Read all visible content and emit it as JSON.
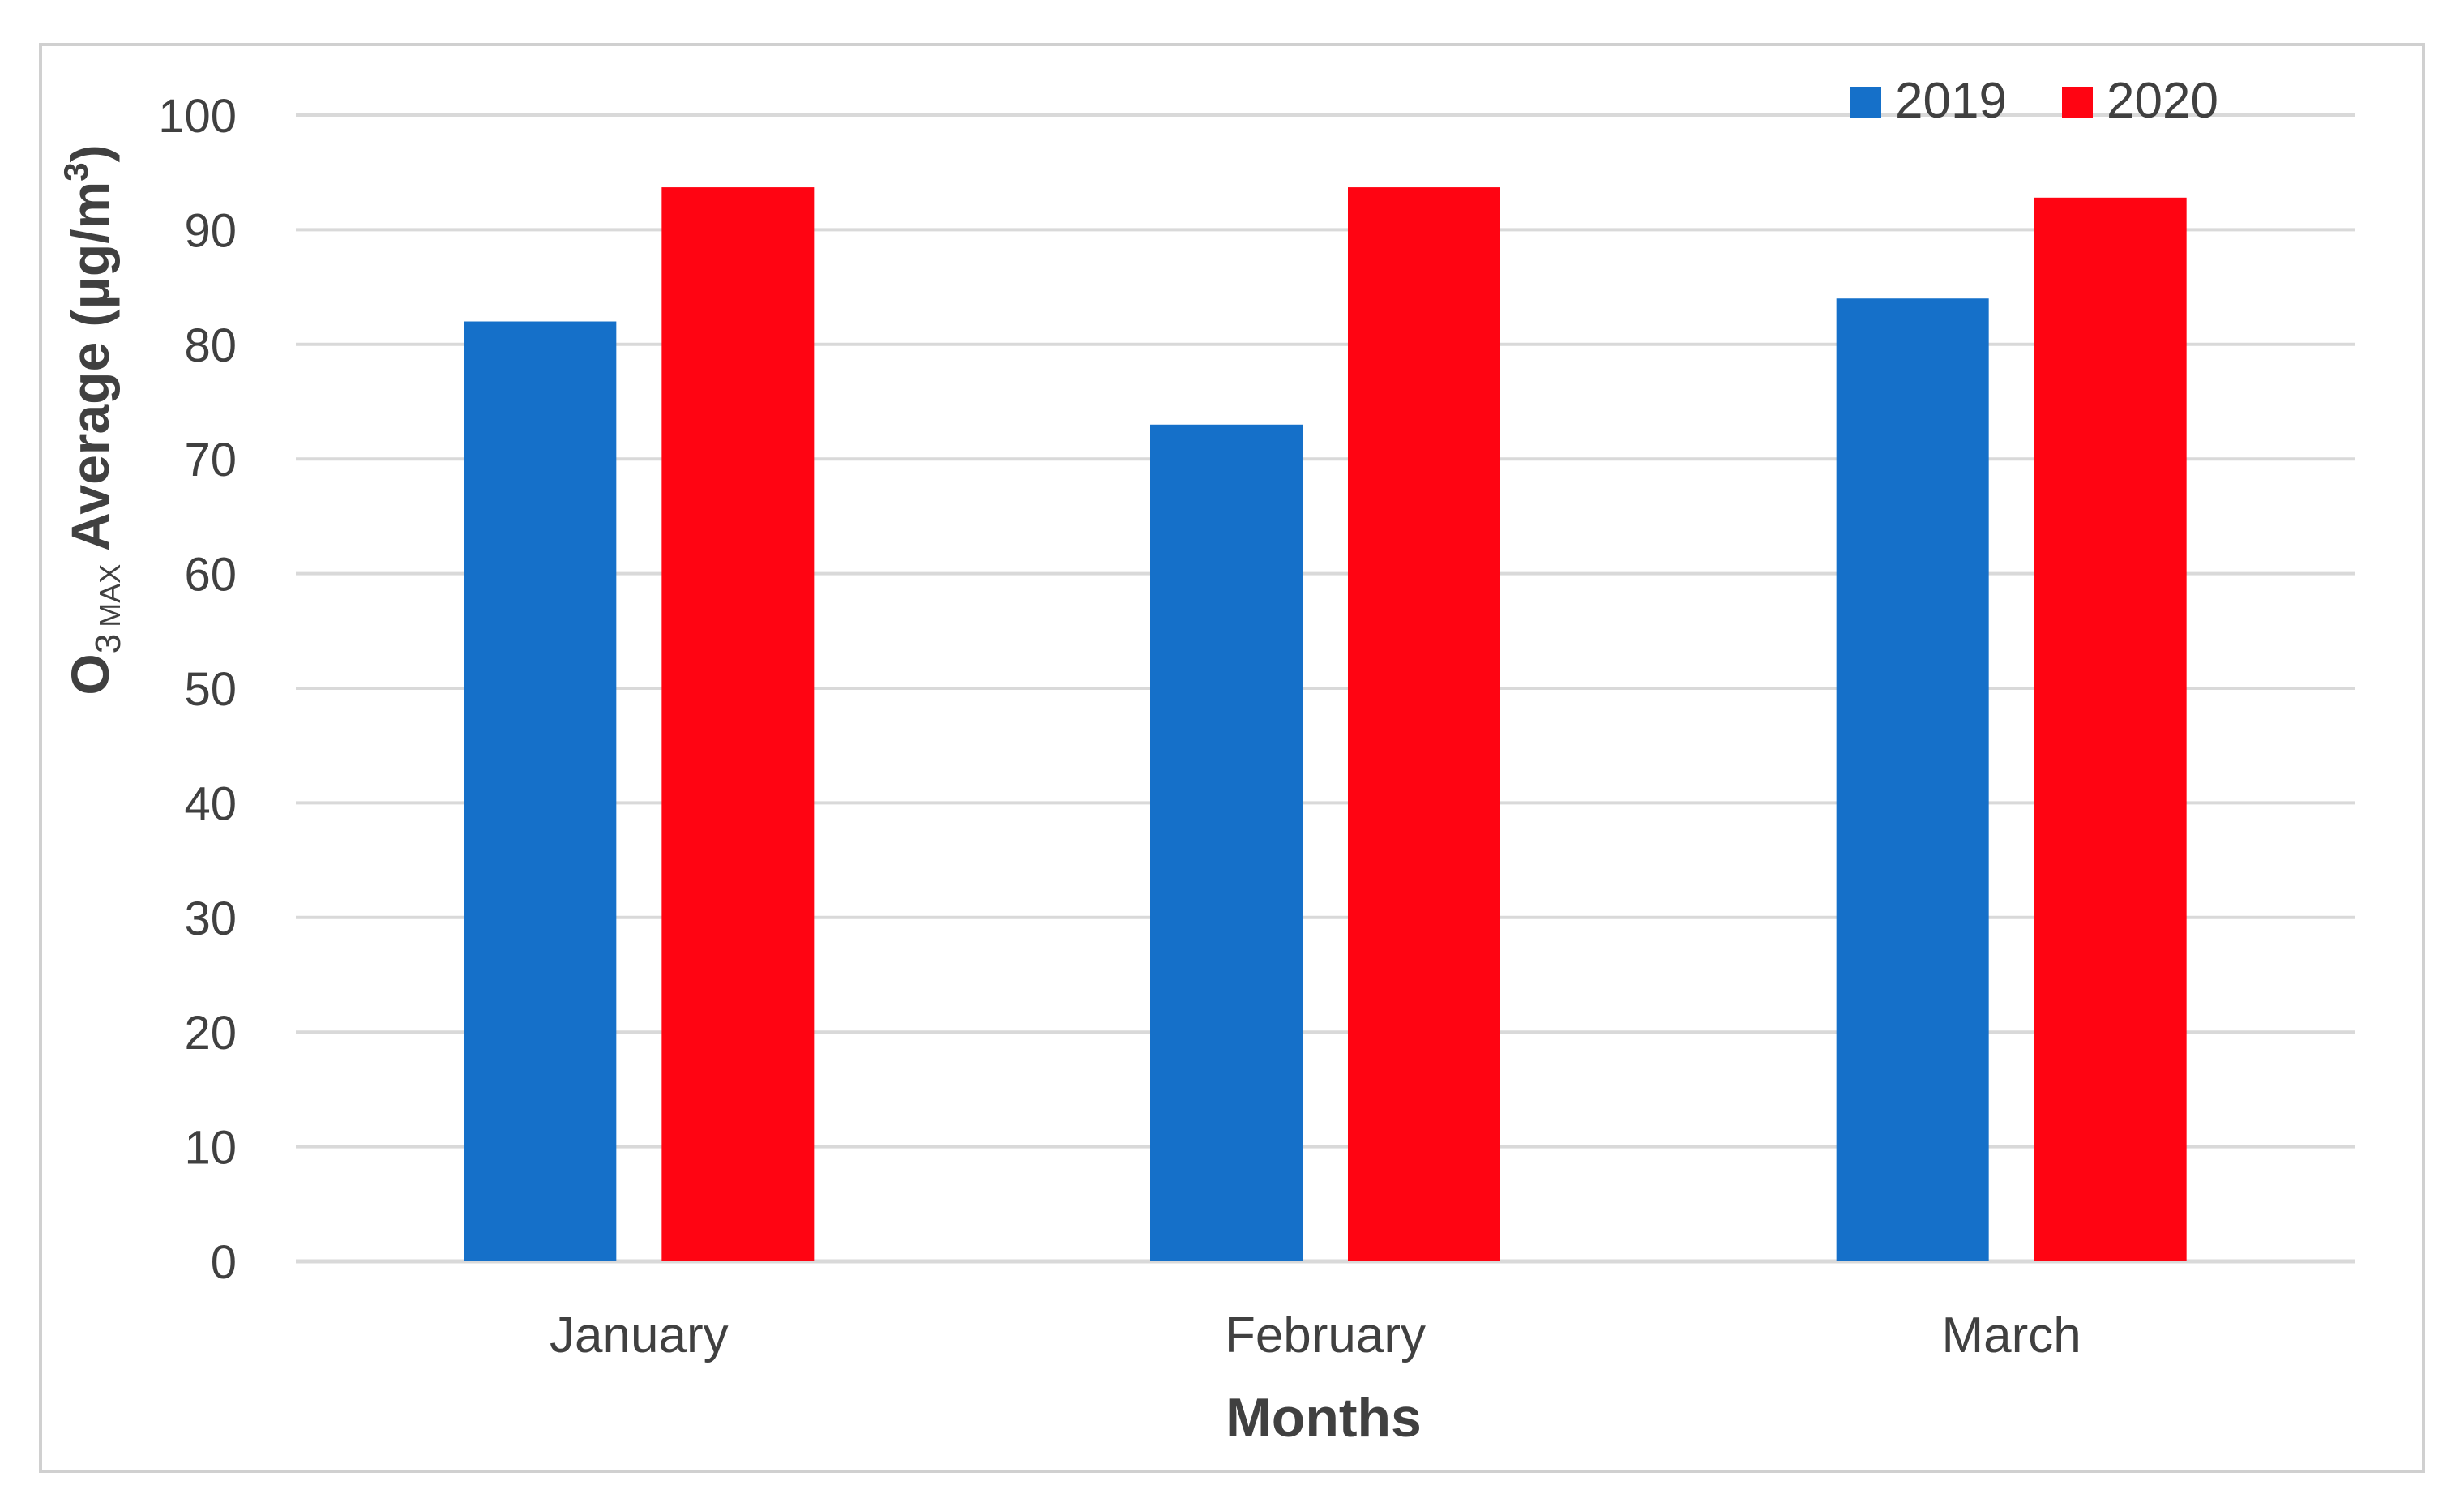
{
  "chart_data": {
    "type": "bar",
    "categories": [
      "January",
      "February",
      "March"
    ],
    "series": [
      {
        "name": "2019",
        "color": "#1570C9",
        "values": [
          82,
          73,
          84
        ]
      },
      {
        "name": "2020",
        "color": "#FF0412",
        "values": [
          93.7,
          93.7,
          92.8
        ]
      }
    ],
    "title": "",
    "xlabel": "Months",
    "ylabel": {
      "prefix": "O",
      "sub1": "3",
      "sub2": "MAX",
      "main": " Average (μg/m",
      "sup": "3",
      "suffix": ")"
    },
    "ylim": [
      0,
      100
    ],
    "yticks": [
      "0",
      "10",
      "20",
      "30",
      "40",
      "50",
      "60",
      "70",
      "80",
      "90",
      "100"
    ],
    "grid": true,
    "legend_position": "top-right",
    "colors": {
      "gridline": "#D9D9D9",
      "text": "#404040",
      "border": "#D0D0D0"
    }
  }
}
